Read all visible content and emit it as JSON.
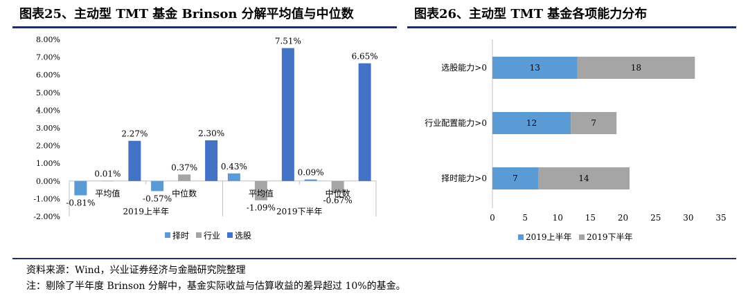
{
  "titles": {
    "left": "图表25、主动型 TMT 基金 Brinson 分解平均值与中位数",
    "right": "图表26、主动型 TMT 基金各项能力分布"
  },
  "notes": {
    "source": "资料来源：Wind，兴业证券经济与金融研究院整理",
    "remark": "注：剔除了半年度 Brinson 分解中，基金实际收益与估算收益的差异超过 10%的基金。"
  },
  "colors": {
    "timing": "#5b9bd5",
    "industry": "#a5a5a5",
    "selection": "#4472c4",
    "h1": "#5b9bd5",
    "h2": "#a5a5a5",
    "title_rule": "#1f2e5e"
  },
  "chart_data": [
    {
      "type": "bar",
      "title": "",
      "ylim": [
        -2,
        8
      ],
      "yticks": [
        "-2.00%",
        "-1.00%",
        "0.00%",
        "1.00%",
        "2.00%",
        "3.00%",
        "4.00%",
        "5.00%",
        "6.00%",
        "7.00%",
        "8.00%"
      ],
      "groups": [
        "2019上半年",
        "2019下半年"
      ],
      "categories": [
        "平均值",
        "中位数",
        "平均值",
        "中位数"
      ],
      "legend": [
        "择时",
        "行业",
        "选股"
      ],
      "legend_position": "bottom",
      "series": [
        {
          "name": "择时",
          "values": [
            -0.81,
            -0.57,
            0.43,
            0.09
          ],
          "labels": [
            "-0.81%",
            "-0.57%",
            "0.43%",
            "0.09%"
          ]
        },
        {
          "name": "行业",
          "values": [
            0.01,
            0.37,
            -1.09,
            -0.67
          ],
          "labels": [
            "0.01%",
            "0.37%",
            "-1.09%",
            "-0.67%"
          ]
        },
        {
          "name": "选股",
          "values": [
            2.27,
            2.3,
            7.51,
            6.65
          ],
          "labels": [
            "2.27%",
            "2.30%",
            "7.51%",
            "6.65%"
          ]
        }
      ],
      "grid": false
    },
    {
      "type": "bar",
      "orientation": "horizontal",
      "stacked": true,
      "title": "",
      "xlim": [
        0,
        35
      ],
      "xticks": [
        "0",
        "5",
        "10",
        "15",
        "20",
        "25",
        "30",
        "35"
      ],
      "categories": [
        "选股能力>0",
        "行业配置能力>0",
        "择时能力>0"
      ],
      "legend": [
        "2019上半年",
        "2019下半年"
      ],
      "legend_position": "bottom",
      "series": [
        {
          "name": "2019上半年",
          "values": [
            13,
            12,
            7
          ]
        },
        {
          "name": "2019下半年",
          "values": [
            18,
            7,
            14
          ]
        }
      ],
      "grid": false
    }
  ]
}
